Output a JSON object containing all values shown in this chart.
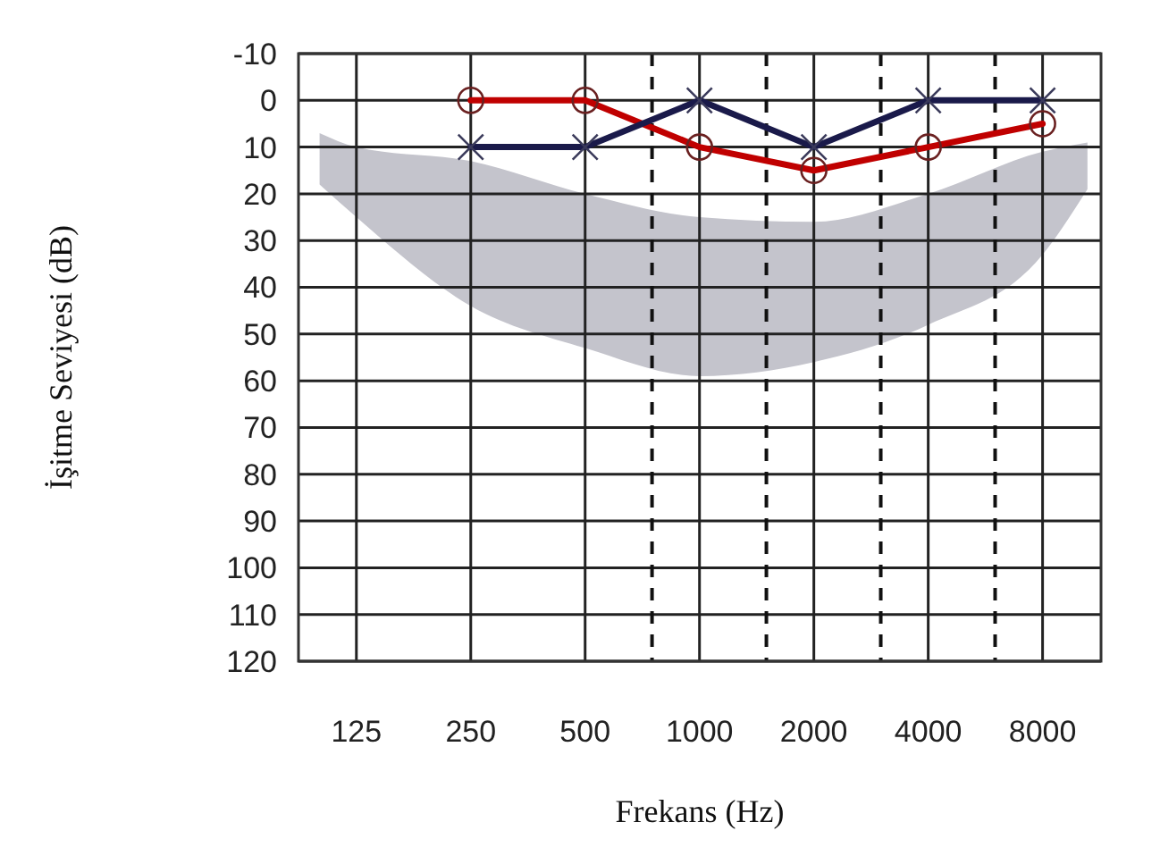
{
  "chart_data": {
    "type": "line",
    "xlabel": "Frekans (Hz)",
    "ylabel": "İşitme Seviyesi (dB)",
    "log": "x",
    "xlim": [
      88,
      11400
    ],
    "xticks": [
      125,
      250,
      500,
      1000,
      2000,
      4000,
      8000
    ],
    "ylim": [
      120,
      -10
    ],
    "yticks": [
      -10,
      0,
      10,
      20,
      30,
      40,
      50,
      60,
      70,
      80,
      90,
      100,
      110,
      120
    ],
    "grid": true,
    "ref_lines": [
      {
        "axis": "x",
        "value": 750,
        "line_style": "dashed",
        "color": "#111111"
      },
      {
        "axis": "x",
        "value": 1500,
        "line_style": "dashed",
        "color": "#111111"
      },
      {
        "axis": "x",
        "value": 3000,
        "line_style": "dashed",
        "color": "#111111"
      },
      {
        "axis": "x",
        "value": 6000,
        "line_style": "dashed",
        "color": "#111111"
      }
    ],
    "series": [
      {
        "type": "area",
        "color": "#c4c4cc",
        "x": [
          100,
          125,
          250,
          500,
          1000,
          2000,
          4000,
          8000,
          10500
        ],
        "lower": [
          7,
          10,
          13,
          20,
          25,
          26,
          20,
          11,
          9
        ],
        "upper": [
          18,
          25,
          44,
          53,
          59,
          56,
          48,
          33,
          19
        ],
        "values": [
          null,
          null,
          null,
          null,
          null,
          null,
          null,
          null,
          null
        ]
      },
      {
        "color": "#c00000",
        "marker": "circle",
        "x": [
          250,
          500,
          1000,
          2000,
          4000,
          8000
        ],
        "values": [
          0,
          0,
          10,
          15,
          10,
          5
        ]
      },
      {
        "color": "#1a1a4a",
        "marker": "cross",
        "x": [
          250,
          500,
          1000,
          2000,
          4000,
          8000
        ],
        "values": [
          10,
          10,
          0,
          10,
          0,
          0
        ]
      }
    ]
  }
}
